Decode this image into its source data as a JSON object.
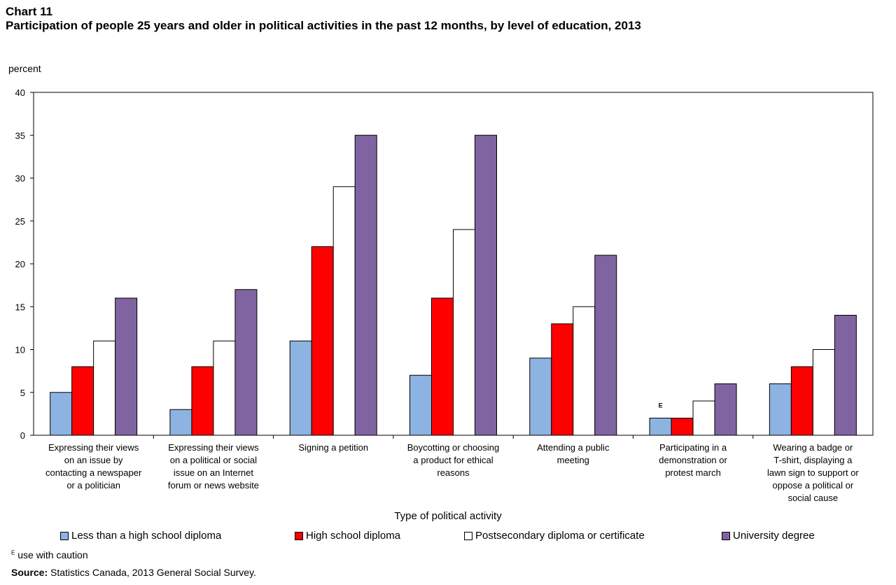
{
  "chart_title": "Chart 11",
  "chart_subtitle": "Participation of people 25 years and older in political activities in the past 12 months, by level of education, 2013",
  "footnote_marker": "E",
  "footnote_text": "use with caution",
  "source_label": "Source:",
  "source_text": "Statistics Canada, 2013 General Social Survey.",
  "chart_data": {
    "type": "bar",
    "title": "Participation of people 25 years and older in political activities in the past 12 months, by level of education, 2013",
    "xlabel": "Type of political activity",
    "ylabel": "percent",
    "ylim": [
      0,
      40
    ],
    "yticks": [
      0,
      5,
      10,
      15,
      20,
      25,
      30,
      35,
      40
    ],
    "grid": false,
    "legend_position": "bottom",
    "categories": [
      [
        "Expressing their views",
        "on an issue by",
        "contacting a newspaper",
        "or a politician"
      ],
      [
        "Expressing their views",
        "on a political or social",
        "issue on an Internet",
        "forum or news website"
      ],
      [
        "Signing a petition"
      ],
      [
        "Boycotting or choosing",
        "a product for ethical",
        "reasons"
      ],
      [
        "Attending a public",
        "meeting"
      ],
      [
        "Participating in a",
        "demonstration or",
        "protest march"
      ],
      [
        "Wearing a badge or",
        "T-shirt, displaying a",
        "lawn sign to support or",
        "oppose a political or",
        "social cause"
      ]
    ],
    "series": [
      {
        "name": "Less than a high school diploma",
        "color": "#8db3e2",
        "values": [
          5,
          3,
          11,
          7,
          9,
          2,
          6
        ]
      },
      {
        "name": "High school diploma",
        "color": "#ff0000",
        "values": [
          8,
          8,
          22,
          16,
          13,
          2,
          8
        ]
      },
      {
        "name": "Postsecondary diploma or certificate",
        "color": "#ffffff",
        "values": [
          11,
          11,
          29,
          24,
          15,
          4,
          10
        ]
      },
      {
        "name": "University degree",
        "color": "#8064a2",
        "values": [
          16,
          17,
          35,
          35,
          21,
          6,
          14
        ]
      }
    ],
    "annotations": [
      {
        "category_index": 5,
        "series_index": 0,
        "text": "E"
      }
    ]
  }
}
